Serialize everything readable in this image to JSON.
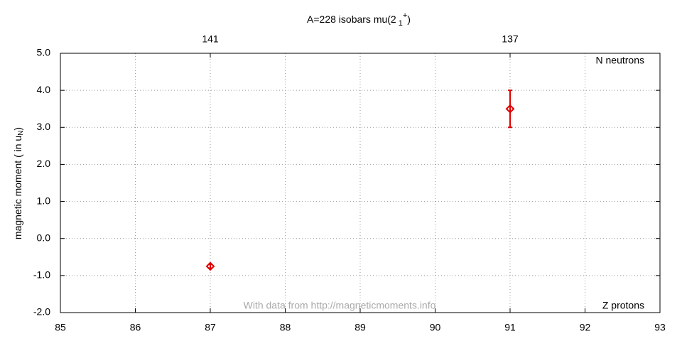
{
  "chart_data": {
    "type": "scatter",
    "title": [
      "A=228 isobars mu(2",
      "1",
      "+",
      ")"
    ],
    "ylabel": [
      "magnetic moment ( in u",
      "N",
      ")"
    ],
    "annotations": [
      "N neutrons",
      "Z protons",
      "With data from http://magneticmoments.info"
    ],
    "x": [
      87,
      91
    ],
    "series": [
      {
        "color": "#e00000",
        "values": [
          -0.75,
          3.5
        ],
        "errors": [
          0.05,
          0.5
        ]
      }
    ],
    "xlim": [
      85,
      93
    ],
    "xticks": [
      85,
      86,
      87,
      88,
      89,
      90,
      91,
      92,
      93
    ],
    "x2ticks": [
      {
        "value": 87,
        "label": "141"
      },
      {
        "value": 91,
        "label": "137"
      }
    ],
    "ylim": [
      -2,
      5
    ],
    "yticks": [
      {
        "value": -2,
        "label": "-2.0"
      },
      {
        "value": -1,
        "label": "-1.0"
      },
      {
        "value": 0,
        "label": "0.0"
      },
      {
        "value": 1,
        "label": "1.0"
      },
      {
        "value": 2,
        "label": "2.0"
      },
      {
        "value": 3,
        "label": "3.0"
      },
      {
        "value": 4,
        "label": "4.0"
      },
      {
        "value": 5,
        "label": "5.0"
      }
    ],
    "grid": true
  }
}
